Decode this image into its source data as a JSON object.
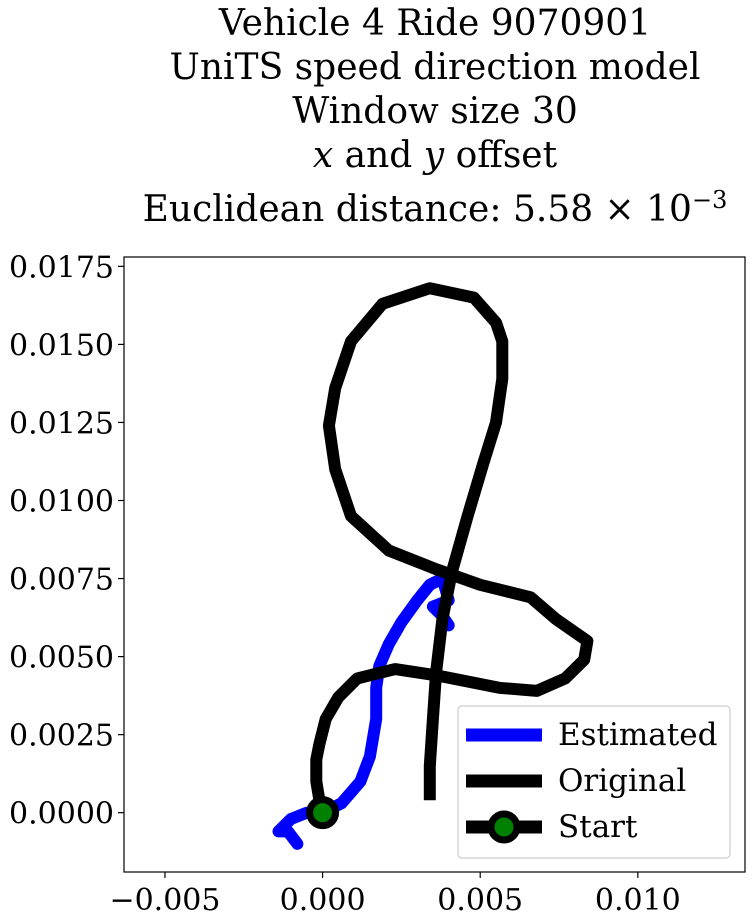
{
  "title": {
    "line1": "Vehicle 4 Ride 9070901",
    "line2": "UniTS speed direction model",
    "line3": "Window size 30",
    "line4_var_x": "x",
    "line4_and": " and ",
    "line4_var_y": "y",
    "line4_rest": " offset",
    "line5_prefix": "Euclidean distance: ",
    "line5_value": "5.58",
    "line5_times": " × 10",
    "line5_exp": "−3"
  },
  "colors": {
    "estimated": "#0000ff",
    "original": "#000000",
    "start_fill": "#008000",
    "start_edge": "#000000"
  },
  "chart_data": {
    "type": "line",
    "xlim": [
      -0.0063,
      0.0134
    ],
    "ylim": [
      -0.0019,
      0.0178
    ],
    "xticks": [
      -0.005,
      0.0,
      0.005,
      0.01
    ],
    "xtick_labels": [
      "−0.005",
      "0.000",
      "0.005",
      "0.010"
    ],
    "yticks": [
      0.0,
      0.0025,
      0.005,
      0.0075,
      0.01,
      0.0125,
      0.015,
      0.0175
    ],
    "ytick_labels": [
      "0.0000",
      "0.0025",
      "0.0050",
      "0.0075",
      "0.0100",
      "0.0125",
      "0.0150",
      "0.0175"
    ],
    "legend_position": "lower-right",
    "grid": false,
    "series": [
      {
        "name": "Estimated",
        "x": [
          -0.0008,
          -0.0011,
          -0.0014,
          -0.001,
          -0.0005,
          0.0,
          0.0006,
          0.0012,
          0.0015,
          0.0017,
          0.0017,
          0.0018,
          0.0021,
          0.0025,
          0.003,
          0.0034,
          0.0038,
          0.004,
          0.0035,
          0.0038,
          0.004
        ],
        "y": [
          -0.001,
          -0.0006,
          -0.0006,
          -0.0002,
          0.0,
          0.0,
          0.0003,
          0.001,
          0.0018,
          0.003,
          0.004,
          0.0047,
          0.0054,
          0.0061,
          0.0068,
          0.0073,
          0.0075,
          0.0068,
          0.0066,
          0.0063,
          0.006
        ]
      },
      {
        "name": "Original",
        "x": [
          0.0034,
          0.0034,
          0.0035,
          0.0036,
          0.0038,
          0.0041,
          0.0046,
          0.0051,
          0.0055,
          0.0057,
          0.0057,
          0.0055,
          0.0048,
          0.0034,
          0.0019,
          0.0009,
          0.0004,
          0.0002,
          0.0004,
          0.0009,
          0.0021,
          0.0036,
          0.005,
          0.0066,
          0.0074,
          0.0084,
          0.0083,
          0.0077,
          0.0068,
          0.0056,
          0.0036,
          0.0023,
          0.0011,
          0.0005,
          0.0001,
          -0.0001,
          -0.0002,
          -0.0002,
          -0.0001,
          0.0
        ],
        "y": [
          0.0004,
          0.0015,
          0.003,
          0.0045,
          0.0062,
          0.0077,
          0.0095,
          0.0112,
          0.0125,
          0.0139,
          0.0151,
          0.0157,
          0.0165,
          0.0168,
          0.0163,
          0.0151,
          0.0136,
          0.0124,
          0.011,
          0.0095,
          0.0084,
          0.0078,
          0.0073,
          0.0069,
          0.0062,
          0.0055,
          0.0049,
          0.0043,
          0.0039,
          0.004,
          0.0044,
          0.0046,
          0.0043,
          0.0037,
          0.003,
          0.0022,
          0.0017,
          0.001,
          0.0004,
          0.0
        ]
      },
      {
        "name": "Start",
        "x": [
          0.0
        ],
        "y": [
          0.0
        ]
      }
    ]
  }
}
